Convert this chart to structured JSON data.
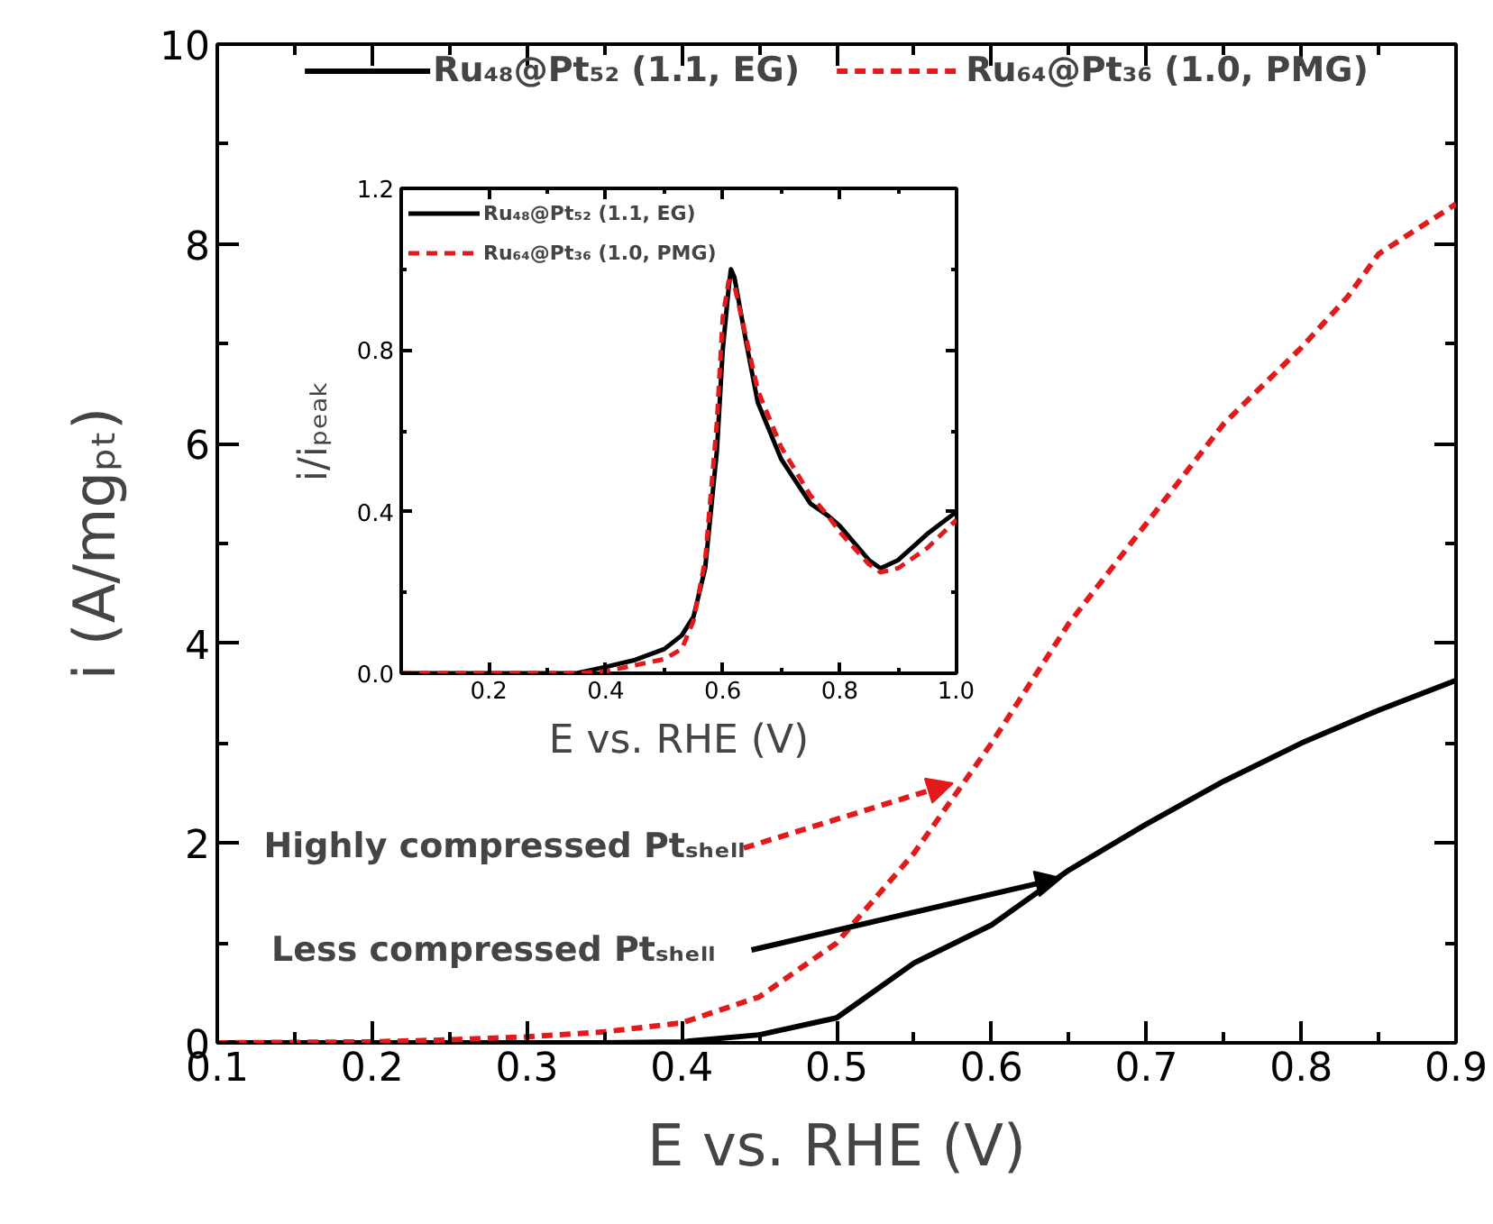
{
  "chart_data": [
    {
      "type": "line",
      "xlabel": "E vs. RHE (V)",
      "ylabel": "i (A/mgₚₜ)",
      "x": [
        0.1,
        0.2,
        0.25,
        0.3,
        0.35,
        0.4,
        0.45,
        0.5,
        0.55,
        0.6,
        0.65,
        0.7,
        0.75,
        0.8,
        0.83,
        0.85,
        0.9
      ],
      "series": [
        {
          "name": "Ru₄₈@Pt₅₂ (1.1, EG)",
          "color": "#000000",
          "line_style": "solid",
          "values": [
            0,
            0,
            0,
            0,
            0,
            0.01,
            0.08,
            0.25,
            0.8,
            1.18,
            1.73,
            2.19,
            2.62,
            3.0,
            3.2,
            3.33,
            3.63
          ]
        },
        {
          "name": "Ru₆₄@Pt₃₆ (1.0, PMG)",
          "color": "#e31a1c",
          "line_style": "dashed",
          "values": [
            0,
            0.01,
            0.03,
            0.06,
            0.11,
            0.2,
            0.46,
            1.0,
            1.9,
            3.0,
            4.2,
            5.2,
            6.2,
            6.96,
            7.47,
            7.9,
            8.4
          ]
        }
      ],
      "xlim": [
        0.1,
        0.9
      ],
      "ylim": [
        0,
        10
      ],
      "xticks": [
        0.1,
        0.2,
        0.3,
        0.4,
        0.5,
        0.6,
        0.7,
        0.8,
        0.9
      ],
      "yticks": [
        0,
        2,
        4,
        6,
        8,
        10
      ],
      "legend": "top",
      "annotations": [
        {
          "text": "Highly compressed Ptₛₕₑₗₗ",
          "x": 0.575,
          "y": 2.6
        },
        {
          "text": "Less compressed Ptₛₕₑₗₗ",
          "x": 0.645,
          "y": 1.65
        }
      ]
    },
    {
      "type": "line",
      "xlabel": "E vs. RHE (V)",
      "ylabel": "i/iₚₑₐₖ",
      "x": [
        0.05,
        0.2,
        0.35,
        0.4,
        0.45,
        0.5,
        0.53,
        0.55,
        0.57,
        0.59,
        0.6,
        0.61,
        0.614,
        0.62,
        0.64,
        0.66,
        0.7,
        0.75,
        0.78,
        0.8,
        0.85,
        0.87,
        0.9,
        0.95,
        1.0
      ],
      "series": [
        {
          "name": "Ru₄₈@Pt₅₂ (1.1, EG)",
          "color": "#000000",
          "line_style": "solid",
          "values": [
            0,
            0,
            0,
            0.016,
            0.033,
            0.06,
            0.094,
            0.14,
            0.26,
            0.55,
            0.8,
            0.95,
            1.0,
            0.98,
            0.82,
            0.67,
            0.53,
            0.42,
            0.39,
            0.365,
            0.28,
            0.26,
            0.28,
            0.345,
            0.4
          ]
        },
        {
          "name": "Ru₆₄@Pt₃₆ (1.0, PMG)",
          "color": "#e31a1c",
          "line_style": "dashed",
          "values": [
            0,
            0,
            0,
            0.005,
            0.02,
            0.035,
            0.06,
            0.13,
            0.28,
            0.62,
            0.88,
            0.97,
            0.97,
            0.96,
            0.83,
            0.7,
            0.56,
            0.44,
            0.39,
            0.35,
            0.27,
            0.25,
            0.26,
            0.31,
            0.38
          ]
        }
      ],
      "xlim": [
        0.05,
        1.0
      ],
      "ylim": [
        0,
        1.2
      ],
      "xticks": [
        0.2,
        0.4,
        0.6,
        0.8,
        {
          "value": 1.0,
          "label": "1.0"
        }
      ],
      "yticks": [
        {
          "value": 0,
          "label": "0.0"
        },
        0.4,
        0.8,
        1.2
      ],
      "legend": "top left"
    }
  ]
}
